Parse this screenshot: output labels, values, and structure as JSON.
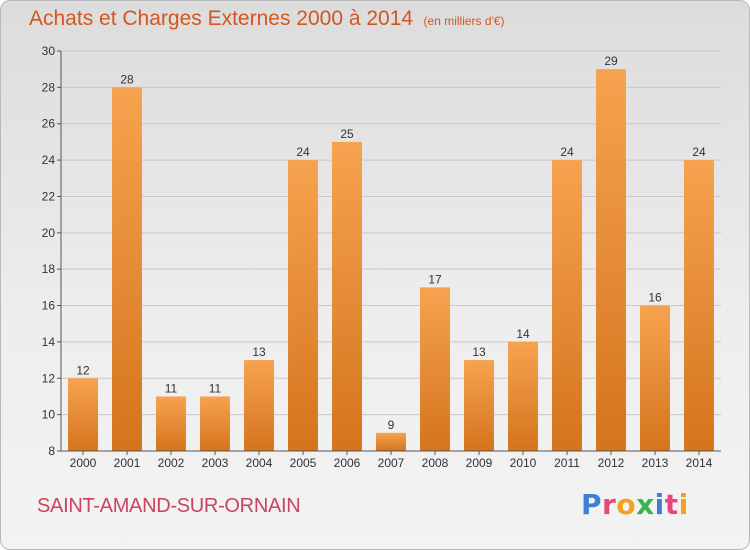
{
  "header": {
    "title": "Achats et Charges Externes 2000 à 2014",
    "unit": "(en milliers d'€)"
  },
  "footer": {
    "place": "SAINT-AMAND-SUR-ORNAIN",
    "brand_letters": [
      "P",
      "r",
      "o",
      "x",
      "i",
      "t",
      "i"
    ]
  },
  "colors": {
    "bar_light": "#f7a24f",
    "bar_dark": "#d4741d",
    "title": "#d4561e",
    "place": "#c8455d",
    "grid": "#c8c8c8"
  },
  "chart_data": {
    "type": "bar",
    "title": "Achats et Charges Externes 2000 à 2014",
    "subtitle": "(en milliers d'€)",
    "xlabel": "",
    "ylabel": "",
    "categories": [
      "2000",
      "2001",
      "2002",
      "2003",
      "2004",
      "2005",
      "2006",
      "2007",
      "2008",
      "2009",
      "2010",
      "2011",
      "2012",
      "2013",
      "2014"
    ],
    "values": [
      12,
      28,
      11,
      11,
      13,
      24,
      25,
      9,
      17,
      13,
      14,
      24,
      29,
      16,
      24
    ],
    "ylim": [
      8,
      30
    ],
    "yticks": [
      8,
      10,
      12,
      14,
      16,
      18,
      20,
      22,
      24,
      26,
      28,
      30
    ],
    "grid": true,
    "legend": "none"
  }
}
